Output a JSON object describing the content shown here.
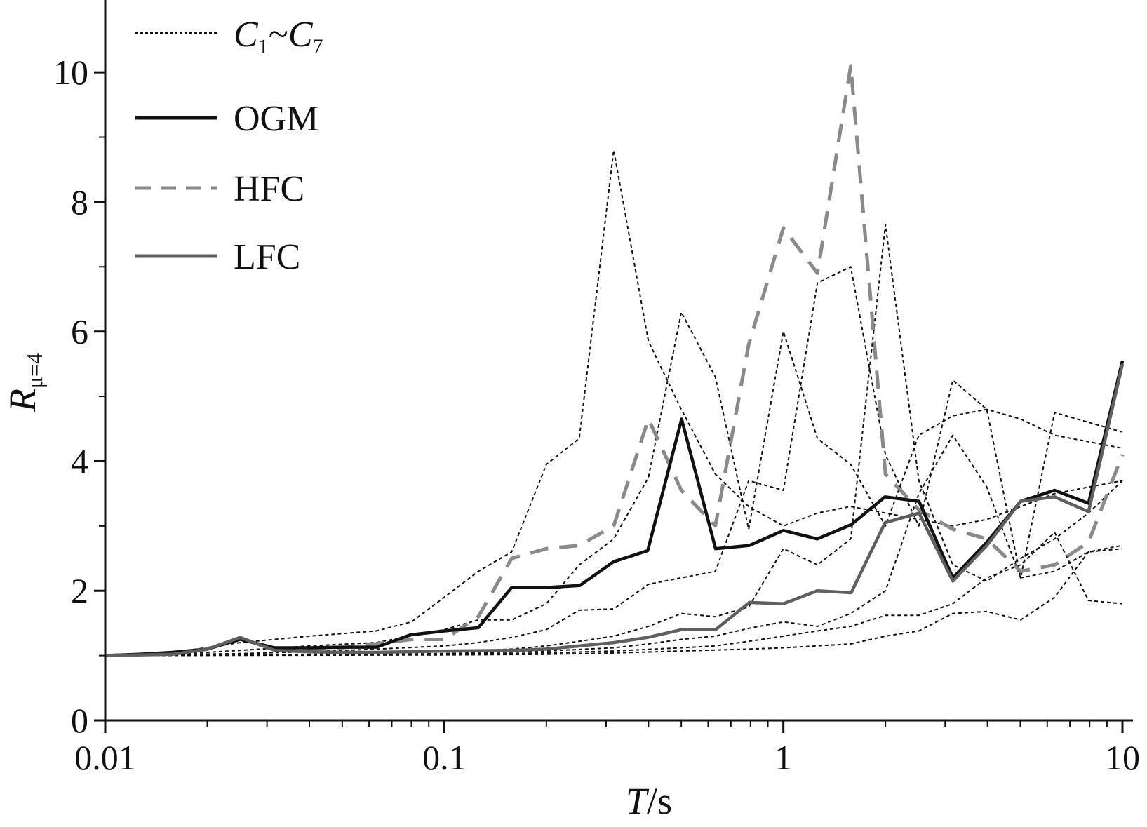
{
  "chart_data": {
    "type": "line",
    "x_scale": "log",
    "xlim": [
      0.01,
      10
    ],
    "ylim": [
      0,
      10.9
    ],
    "x_ticks": [
      0.01,
      0.1,
      1,
      10
    ],
    "x_tick_labels": [
      "0.01",
      "0.1",
      "1",
      "10"
    ],
    "y_ticks": [
      0,
      2,
      4,
      6,
      8,
      10
    ],
    "y_tick_labels": [
      "0",
      "2",
      "4",
      "6",
      "8",
      "10"
    ],
    "xlabel": {
      "var": "T",
      "unit": "/s"
    },
    "ylabel": {
      "var": "R",
      "sub": "μ=4"
    },
    "legend_position": "top-left",
    "grid": false,
    "legend": [
      {
        "key": "c",
        "label_c": "C",
        "label_sub1": "1",
        "label_tilde": "~",
        "label_sub2": "7",
        "color": "#111111",
        "style": "dotted"
      },
      {
        "key": "ogm",
        "label": "OGM",
        "color": "#111111",
        "style": "solid"
      },
      {
        "key": "hfc",
        "label": "HFC",
        "color": "#8a8a8a",
        "style": "dashed"
      },
      {
        "key": "lfc",
        "label": "LFC",
        "color": "#5f5f5f",
        "style": "solid"
      }
    ],
    "series": [
      {
        "group": "c",
        "style": "dotted",
        "color": "#111111",
        "x": [
          0.01,
          0.016,
          0.025,
          0.04,
          0.063,
          0.08,
          0.1,
          0.126,
          0.158,
          0.2,
          0.25,
          0.316,
          0.4,
          0.5,
          0.63,
          0.79,
          1.0,
          1.26,
          1.58,
          2.0,
          2.51,
          3.16,
          3.98,
          5.01,
          6.31,
          7.94,
          10.0
        ],
        "y": [
          1.0,
          1.05,
          1.2,
          1.3,
          1.38,
          1.52,
          1.9,
          2.3,
          2.6,
          3.95,
          4.35,
          8.8,
          5.85,
          4.8,
          3.8,
          3.3,
          3.0,
          3.2,
          3.3,
          3.2,
          3.1,
          3.0,
          3.1,
          3.3,
          3.5,
          3.6,
          3.7
        ]
      },
      {
        "group": "c",
        "style": "dotted",
        "color": "#111111",
        "x": [
          0.01,
          0.016,
          0.025,
          0.04,
          0.063,
          0.1,
          0.126,
          0.158,
          0.2,
          0.25,
          0.316,
          0.4,
          0.5,
          0.63,
          0.79,
          1.0,
          1.26,
          1.58,
          2.0,
          2.51,
          3.16,
          3.98,
          5.01,
          6.31,
          7.94,
          10.0
        ],
        "y": [
          1.0,
          1.02,
          1.08,
          1.15,
          1.2,
          1.4,
          1.55,
          1.55,
          1.8,
          2.4,
          2.8,
          3.75,
          6.3,
          5.3,
          2.95,
          6.0,
          4.35,
          3.95,
          3.0,
          4.4,
          4.7,
          4.8,
          4.65,
          4.4,
          4.3,
          4.2
        ]
      },
      {
        "group": "c",
        "style": "dotted",
        "color": "#111111",
        "x": [
          0.01,
          0.025,
          0.04,
          0.063,
          0.1,
          0.126,
          0.158,
          0.2,
          0.25,
          0.316,
          0.4,
          0.5,
          0.63,
          0.79,
          1.0,
          1.26,
          1.58,
          2.0,
          2.51,
          3.16,
          3.98,
          5.01,
          6.31,
          7.94,
          10.0
        ],
        "y": [
          1.0,
          1.03,
          1.06,
          1.1,
          1.15,
          1.2,
          1.28,
          1.4,
          1.7,
          1.72,
          2.1,
          2.2,
          2.3,
          3.7,
          3.55,
          6.75,
          7.0,
          4.1,
          3.0,
          5.25,
          4.8,
          2.2,
          2.3,
          2.6,
          2.65
        ]
      },
      {
        "group": "c",
        "style": "dotted",
        "color": "#111111",
        "x": [
          0.01,
          0.04,
          0.1,
          0.158,
          0.2,
          0.25,
          0.316,
          0.4,
          0.5,
          0.63,
          0.79,
          1.0,
          1.26,
          1.58,
          2.0,
          2.51,
          3.16,
          3.98,
          5.01,
          6.31,
          7.94,
          10.0
        ],
        "y": [
          1.0,
          1.02,
          1.06,
          1.1,
          1.15,
          1.22,
          1.3,
          1.45,
          1.65,
          1.6,
          1.75,
          2.65,
          2.4,
          2.8,
          7.65,
          3.7,
          2.4,
          2.15,
          2.5,
          2.8,
          3.2,
          3.7
        ]
      },
      {
        "group": "c",
        "style": "dotted",
        "color": "#111111",
        "x": [
          0.01,
          0.04,
          0.1,
          0.2,
          0.316,
          0.4,
          0.5,
          0.63,
          0.79,
          1.0,
          1.26,
          1.58,
          2.0,
          2.51,
          3.16,
          3.98,
          5.01,
          6.31,
          7.94,
          10.0
        ],
        "y": [
          1.0,
          1.01,
          1.03,
          1.07,
          1.12,
          1.18,
          1.25,
          1.3,
          1.42,
          1.52,
          1.45,
          1.65,
          2.0,
          3.5,
          4.4,
          3.6,
          2.2,
          4.75,
          4.6,
          4.45
        ]
      },
      {
        "group": "c",
        "style": "dotted",
        "color": "#111111",
        "x": [
          0.01,
          0.1,
          0.2,
          0.316,
          0.5,
          0.63,
          0.79,
          1.0,
          1.26,
          1.58,
          2.0,
          2.51,
          3.16,
          3.98,
          5.01,
          6.31,
          7.94,
          10.0
        ],
        "y": [
          1.0,
          1.02,
          1.04,
          1.07,
          1.12,
          1.15,
          1.22,
          1.3,
          1.38,
          1.45,
          1.62,
          1.62,
          1.8,
          2.2,
          2.4,
          2.9,
          1.85,
          1.8
        ]
      },
      {
        "group": "c",
        "style": "dotted",
        "color": "#111111",
        "x": [
          0.01,
          0.1,
          0.2,
          0.316,
          0.5,
          0.79,
          1.0,
          1.26,
          1.58,
          2.0,
          2.51,
          3.16,
          3.98,
          5.01,
          6.31,
          7.94,
          10.0
        ],
        "y": [
          1.0,
          1.01,
          1.02,
          1.04,
          1.07,
          1.1,
          1.12,
          1.15,
          1.18,
          1.3,
          1.38,
          1.65,
          1.68,
          1.55,
          1.9,
          2.6,
          2.7
        ]
      },
      {
        "group": "hfc",
        "style": "dashed",
        "color": "#8a8a8a",
        "x": [
          0.01,
          0.016,
          0.02,
          0.025,
          0.032,
          0.04,
          0.05,
          0.063,
          0.08,
          0.1,
          0.126,
          0.158,
          0.2,
          0.25,
          0.316,
          0.4,
          0.5,
          0.63,
          0.79,
          1.0,
          1.26,
          1.58,
          2.0,
          2.51,
          3.16,
          3.98,
          5.01,
          6.31,
          7.94,
          10.0
        ],
        "y": [
          1.0,
          1.03,
          1.1,
          1.27,
          1.08,
          1.1,
          1.12,
          1.18,
          1.25,
          1.25,
          1.6,
          2.5,
          2.65,
          2.7,
          3.0,
          4.65,
          3.55,
          3.0,
          5.8,
          7.6,
          6.9,
          10.1,
          3.8,
          3.25,
          2.95,
          2.8,
          2.3,
          2.4,
          2.75,
          4.1
        ]
      },
      {
        "group": "ogm",
        "style": "solid",
        "color": "#111111",
        "x": [
          0.01,
          0.0126,
          0.0158,
          0.02,
          0.025,
          0.0316,
          0.0398,
          0.0501,
          0.0631,
          0.0794,
          0.1,
          0.126,
          0.158,
          0.2,
          0.251,
          0.316,
          0.398,
          0.501,
          0.631,
          0.794,
          1.0,
          1.259,
          1.585,
          1.995,
          2.512,
          3.162,
          3.981,
          5.012,
          6.31,
          7.943,
          10.0
        ],
        "y": [
          1.0,
          1.02,
          1.05,
          1.1,
          1.25,
          1.12,
          1.12,
          1.13,
          1.13,
          1.32,
          1.38,
          1.43,
          2.05,
          2.05,
          2.08,
          2.45,
          2.62,
          4.65,
          2.65,
          2.7,
          2.93,
          2.8,
          3.02,
          3.45,
          3.38,
          2.2,
          2.75,
          3.38,
          3.55,
          3.35,
          5.55
        ]
      },
      {
        "group": "lfc",
        "style": "solid",
        "color": "#5f5f5f",
        "x": [
          0.01,
          0.0158,
          0.02,
          0.025,
          0.0316,
          0.0398,
          0.0501,
          0.0631,
          0.1,
          0.158,
          0.2,
          0.251,
          0.316,
          0.398,
          0.501,
          0.631,
          0.794,
          1.0,
          1.259,
          1.585,
          1.995,
          2.512,
          3.162,
          3.981,
          5.012,
          6.31,
          7.943,
          10.0
        ],
        "y": [
          1.0,
          1.02,
          1.1,
          1.28,
          1.08,
          1.06,
          1.05,
          1.05,
          1.07,
          1.08,
          1.1,
          1.15,
          1.2,
          1.28,
          1.4,
          1.4,
          1.82,
          1.8,
          2.0,
          1.97,
          3.05,
          3.2,
          2.15,
          2.7,
          3.38,
          3.45,
          3.22,
          5.5
        ]
      }
    ]
  }
}
